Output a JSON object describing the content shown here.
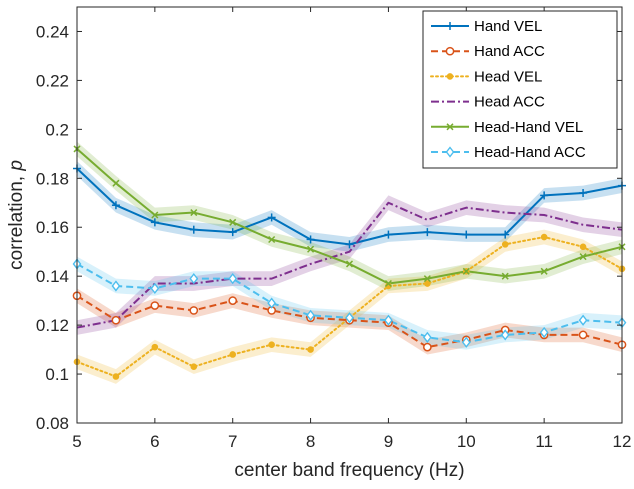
{
  "chart_data": {
    "type": "line",
    "xlabel": "center band frequency (Hz)",
    "ylabel_main": "correlation, ",
    "ylabel_symbol": "p",
    "xlim": [
      5,
      12
    ],
    "ylim": [
      0.08,
      0.25
    ],
    "xticks": [
      5,
      6,
      7,
      8,
      9,
      10,
      11,
      12
    ],
    "xtick_labels": [
      "5",
      "6",
      "7",
      "8",
      "9",
      "10",
      "11",
      "12"
    ],
    "yticks": [
      0.08,
      0.1,
      0.12,
      0.14,
      0.16,
      0.18,
      0.2,
      0.22,
      0.24
    ],
    "ytick_labels": [
      "0.08",
      "0.1",
      "0.12",
      "0.14",
      "0.16",
      "0.18",
      "0.2",
      "0.22",
      "0.24"
    ],
    "grid": false,
    "legend_position": "top-right",
    "x": [
      5,
      5.5,
      6,
      6.5,
      7,
      7.5,
      8,
      8.5,
      9,
      9.5,
      10,
      10.5,
      11,
      11.5,
      12
    ],
    "series": [
      {
        "name": "Hand VEL",
        "color": "#0072BD",
        "dash": "solid",
        "marker": "plus",
        "band": 0.003,
        "values": [
          0.184,
          0.169,
          0.162,
          0.159,
          0.158,
          0.164,
          0.155,
          0.153,
          0.157,
          0.158,
          0.157,
          0.157,
          0.173,
          0.174,
          0.177
        ]
      },
      {
        "name": "Hand ACC",
        "color": "#D95319",
        "dash": "dashed",
        "marker": "circle",
        "band": 0.003,
        "values": [
          0.132,
          0.122,
          0.128,
          0.126,
          0.13,
          0.126,
          0.123,
          0.122,
          0.121,
          0.111,
          0.114,
          0.118,
          0.116,
          0.116,
          0.112
        ]
      },
      {
        "name": "Head VEL",
        "color": "#EDB120",
        "dash": "dotted",
        "marker": "dot",
        "band": 0.003,
        "values": [
          0.105,
          0.099,
          0.111,
          0.103,
          0.108,
          0.112,
          0.11,
          0.123,
          0.136,
          0.137,
          0.142,
          0.153,
          0.156,
          0.152,
          0.143
        ]
      },
      {
        "name": "Head ACC",
        "color": "#7E2F8E",
        "dash": "dashdot",
        "marker": "none",
        "band": 0.003,
        "values": [
          0.119,
          0.122,
          0.137,
          0.137,
          0.139,
          0.139,
          0.145,
          0.15,
          0.17,
          0.163,
          0.168,
          0.166,
          0.165,
          0.161,
          0.159
        ]
      },
      {
        "name": "Head-Hand VEL",
        "color": "#77AC30",
        "dash": "solid",
        "marker": "x",
        "band": 0.003,
        "values": [
          0.192,
          0.178,
          0.165,
          0.166,
          0.162,
          0.155,
          0.151,
          0.145,
          0.137,
          0.139,
          0.142,
          0.14,
          0.142,
          0.148,
          0.152
        ]
      },
      {
        "name": "Head-Hand ACC",
        "color": "#4DBEEE",
        "dash": "dashed",
        "marker": "diamond",
        "band": 0.003,
        "values": [
          0.145,
          0.136,
          0.135,
          0.139,
          0.139,
          0.129,
          0.124,
          0.123,
          0.122,
          0.115,
          0.113,
          0.116,
          0.117,
          0.122,
          0.121
        ]
      }
    ]
  }
}
